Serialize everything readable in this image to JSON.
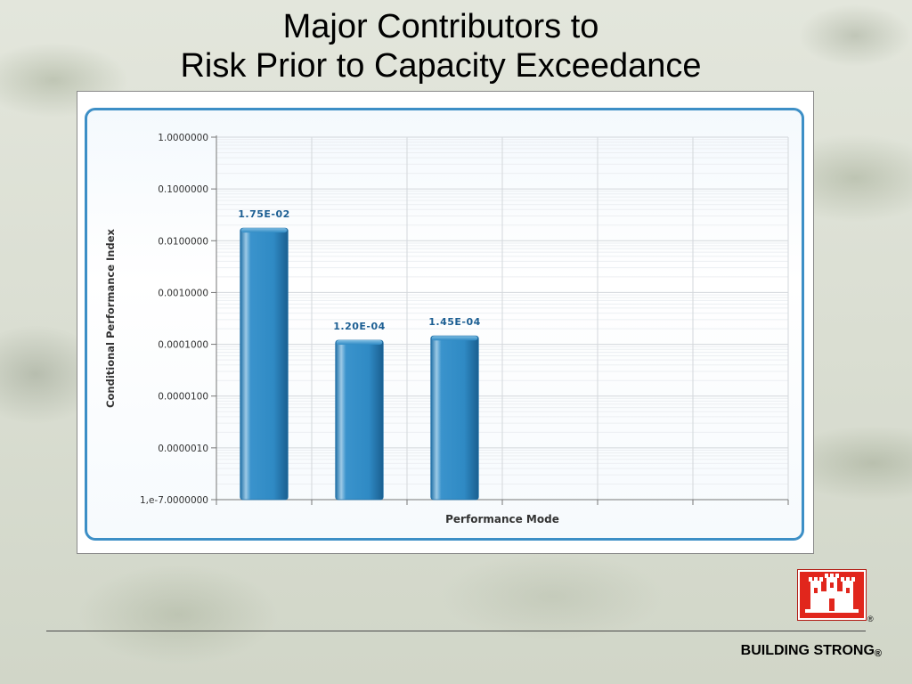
{
  "slide": {
    "title_line1": "Major Contributors to",
    "title_line2": "Risk Prior to Capacity Exceedance",
    "tagline": "BUILDING STRONG",
    "tagline_mark": "®",
    "logo_mark": "®"
  },
  "chart_data": {
    "type": "bar",
    "title": "",
    "xlabel": "Performance Mode",
    "ylabel": "Conditional Performance Index",
    "y_scale": "log",
    "ylim": [
      1e-07,
      1
    ],
    "y_ticks": [
      "1.0000000",
      "0.1000000",
      "0.0100000",
      "0.0010000",
      "0.0001000",
      "0.0000100",
      "0.0000010",
      "1,e-7.0000000"
    ],
    "grid": true,
    "category_count": 6,
    "values": [
      0.0175,
      0.00012,
      0.000145,
      null,
      null,
      null
    ],
    "data_labels": [
      "1.75E-02",
      "1.20E-04",
      "1.45E-04",
      "",
      "",
      ""
    ],
    "colors": {
      "bar": "#2f8ac4",
      "bar_dark": "#1f6fa6",
      "label": "#1d5f93",
      "frame": "#3d8fc6"
    }
  }
}
